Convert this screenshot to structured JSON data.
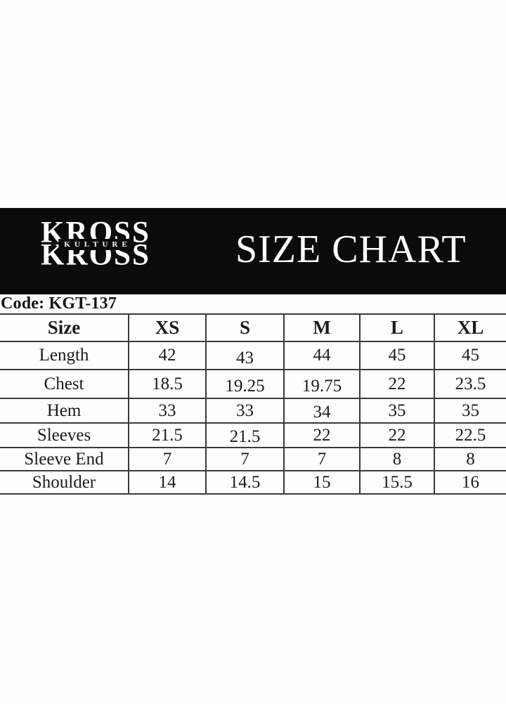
{
  "banner": {
    "background": "#0b0b0b",
    "text_color": "#ffffff",
    "logo": {
      "primary": "KROSS",
      "secondary": "KULTURE"
    },
    "title": "SIZE CHART"
  },
  "code": {
    "label": "Code: KGT-137"
  },
  "table": {
    "columns": [
      "Size",
      "XS",
      "S",
      "M",
      "L",
      "XL"
    ],
    "rows": [
      {
        "label": "Length",
        "values": [
          "42",
          "43",
          "44",
          "45",
          "45"
        ]
      },
      {
        "label": "Chest",
        "values": [
          "18.5",
          "19.25",
          "19.75",
          "22",
          "23.5"
        ]
      },
      {
        "label": "Hem",
        "values": [
          "33",
          "33",
          "34",
          "35",
          "35"
        ]
      },
      {
        "label": "Sleeves",
        "values": [
          "21.5",
          "21.5",
          "22",
          "22",
          "22.5"
        ]
      },
      {
        "label": "Sleeve End",
        "values": [
          "7",
          "7",
          "7",
          "8",
          "8"
        ]
      },
      {
        "label": "Shoulder",
        "values": [
          "14",
          "14.5",
          "15",
          "15.5",
          "16"
        ]
      }
    ]
  }
}
